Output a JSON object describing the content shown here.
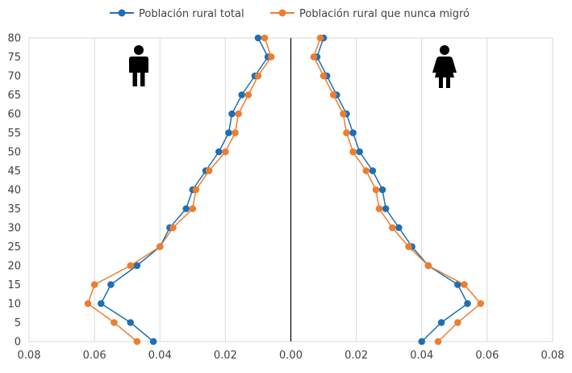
{
  "chart_data": {
    "type": "line",
    "title": "",
    "xlabel": "",
    "ylabel": "",
    "layout": "population-pyramid",
    "xlim": [
      -0.08,
      0.08
    ],
    "ylim": [
      0,
      80
    ],
    "x_ticks": [
      -0.08,
      -0.06,
      -0.04,
      -0.02,
      0,
      0.02,
      0.04,
      0.06,
      0.08
    ],
    "x_tick_labels": [
      "0.08",
      "0.06",
      "0.04",
      "0.02",
      "0.00",
      "0.02",
      "0.04",
      "0.06",
      "0.08"
    ],
    "y_ticks": [
      0,
      5,
      10,
      15,
      20,
      25,
      30,
      35,
      40,
      45,
      50,
      55,
      60,
      65,
      70,
      75,
      80
    ],
    "y_tick_labels": [
      "0",
      "5",
      "10",
      "15",
      "20",
      "25",
      "30",
      "35",
      "40",
      "45",
      "50",
      "55",
      "60",
      "65",
      "70",
      "75",
      "80"
    ],
    "grid": {
      "vertical": true,
      "horizontal": false
    },
    "legend_position": "top-center",
    "legend": [
      "Población rural total",
      "Población rural que nunca migró"
    ],
    "icons": {
      "left": "male-person-icon",
      "right": "female-person-icon"
    },
    "series": [
      {
        "name": "Población rural total",
        "color": "#1f6fb4",
        "panels": [
          {
            "side": "left",
            "ages": [
              0,
              5,
              10,
              15,
              20,
              25,
              30,
              35,
              40,
              45,
              50,
              55,
              60,
              65,
              70,
              75,
              80
            ],
            "values": [
              0.042,
              0.049,
              0.058,
              0.055,
              0.047,
              0.04,
              0.037,
              0.032,
              0.03,
              0.026,
              0.022,
              0.019,
              0.018,
              0.015,
              0.011,
              0.007,
              0.01
            ]
          },
          {
            "side": "right",
            "ages": [
              0,
              5,
              10,
              15,
              20,
              25,
              30,
              35,
              40,
              45,
              50,
              55,
              60,
              65,
              70,
              75,
              80
            ],
            "values": [
              0.04,
              0.046,
              0.054,
              0.051,
              0.042,
              0.037,
              0.033,
              0.029,
              0.028,
              0.025,
              0.021,
              0.019,
              0.017,
              0.014,
              0.011,
              0.008,
              0.01
            ]
          }
        ]
      },
      {
        "name": "Población rural que nunca migró",
        "color": "#ed7d31",
        "panels": [
          {
            "side": "left",
            "ages": [
              0,
              5,
              10,
              15,
              20,
              25,
              30,
              35,
              40,
              45,
              50,
              55,
              60,
              65,
              70,
              75,
              80
            ],
            "values": [
              0.047,
              0.054,
              0.062,
              0.06,
              0.049,
              0.04,
              0.036,
              0.03,
              0.029,
              0.025,
              0.02,
              0.017,
              0.016,
              0.013,
              0.01,
              0.006,
              0.008
            ]
          },
          {
            "side": "right",
            "ages": [
              0,
              5,
              10,
              15,
              20,
              25,
              30,
              35,
              40,
              45,
              50,
              55,
              60,
              65,
              70,
              75,
              80
            ],
            "values": [
              0.045,
              0.051,
              0.058,
              0.053,
              0.042,
              0.036,
              0.031,
              0.027,
              0.026,
              0.023,
              0.019,
              0.017,
              0.016,
              0.013,
              0.01,
              0.007,
              0.009
            ]
          }
        ]
      }
    ]
  }
}
